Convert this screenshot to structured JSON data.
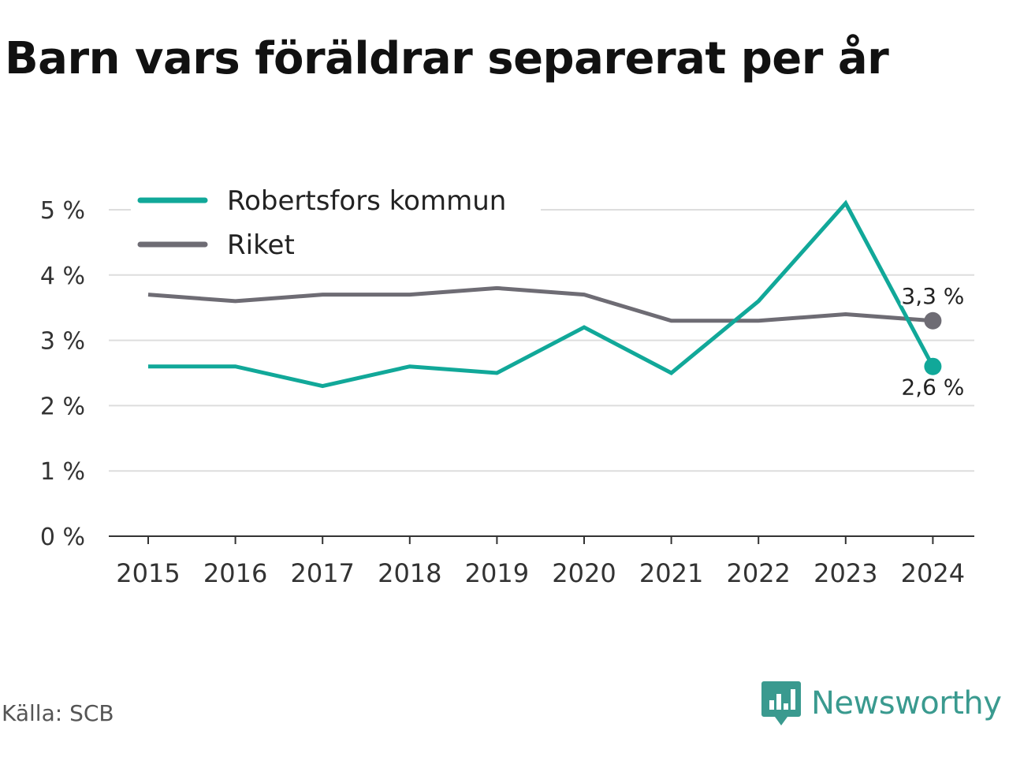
{
  "title": "Barn vars föräldrar separerat per år",
  "source": "Källa: SCB",
  "brand": {
    "name": "Newsworthy",
    "color": "#3a9a8f",
    "icon": "newsworthy-logo-icon"
  },
  "chart_data": {
    "type": "line",
    "title": "Barn vars föräldrar separerat per år",
    "xlabel": "",
    "ylabel": "",
    "x": [
      "2015",
      "2016",
      "2017",
      "2018",
      "2019",
      "2020",
      "2021",
      "2022",
      "2023",
      "2024"
    ],
    "y_ticks": [
      "0 %",
      "1 %",
      "2 %",
      "3 %",
      "4 %",
      "5 %"
    ],
    "ylim": [
      0,
      5
    ],
    "grid": true,
    "legend_position": "top-left",
    "series": [
      {
        "name": "Robertsfors kommun",
        "color": "#11a899",
        "values": [
          2.6,
          2.6,
          2.3,
          2.6,
          2.5,
          3.2,
          2.5,
          3.6,
          5.1,
          2.6
        ],
        "end_label": "2,6 %"
      },
      {
        "name": "Riket",
        "color": "#6e6c74",
        "values": [
          3.7,
          3.6,
          3.7,
          3.7,
          3.8,
          3.7,
          3.3,
          3.3,
          3.4,
          3.3
        ],
        "end_label": "3,3 %"
      }
    ]
  }
}
